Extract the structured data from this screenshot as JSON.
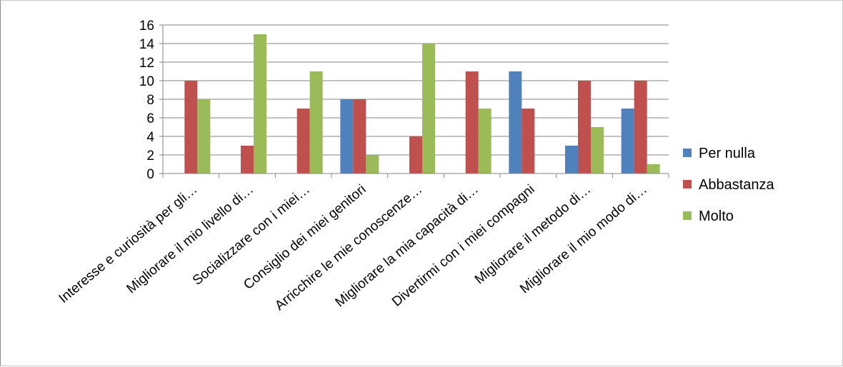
{
  "chart_data": {
    "type": "bar",
    "title": "",
    "xlabel": "",
    "ylabel": "",
    "ylim": [
      0,
      16
    ],
    "yticks": [
      0,
      2,
      4,
      6,
      8,
      10,
      12,
      14,
      16
    ],
    "grid": true,
    "legend_position": "right",
    "categories": [
      "Interesse e curiosità per gli…",
      "Migliorare il mio livello di…",
      "Socializzare con i miei…",
      "Consiglio dei miei genitori",
      "Arricchire le mie conoscenze…",
      "Migliorare la mia capacità di…",
      "Divertirmi con i miei compagni",
      "Migliorare il metodo di…",
      "Migliorare il mio modo di…"
    ],
    "series": [
      {
        "name": "Per nulla",
        "color": "#4f81bd",
        "values": [
          0,
          0,
          0,
          8,
          0,
          0,
          11,
          3,
          7
        ]
      },
      {
        "name": "Abbastanza",
        "color": "#c0504d",
        "values": [
          10,
          3,
          7,
          8,
          4,
          11,
          7,
          10,
          10
        ]
      },
      {
        "name": "Molto",
        "color": "#9bbb59",
        "values": [
          8,
          15,
          11,
          2,
          14,
          7,
          0,
          5,
          1
        ]
      }
    ]
  }
}
